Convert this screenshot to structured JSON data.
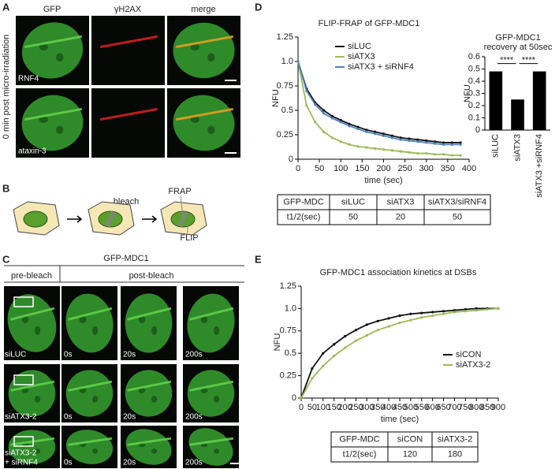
{
  "panel_labels": [
    "A",
    "B",
    "C",
    "D",
    "E"
  ],
  "panel_a": {
    "columns": [
      "GFP",
      "γH2AX",
      "merge"
    ],
    "side_label": "0 min post micro-irradiation",
    "rows": [
      "RNF4",
      "ataxin-3"
    ]
  },
  "panel_b": {
    "labels": [
      "bleach",
      "FRAP",
      "FLIP"
    ]
  },
  "panel_c": {
    "title": "GFP-MDC1",
    "groups": [
      "pre-bleach",
      "post-bleach"
    ],
    "rows": [
      [
        "siLUC"
      ],
      [
        "siATX3-2"
      ],
      [
        "siATX3-2",
        "+ siRNF4"
      ]
    ],
    "times": [
      "0s",
      "20s",
      "200s"
    ]
  },
  "chart_data": [
    {
      "type": "line",
      "title": "FLIP-FRAP of GFP-MDC1",
      "x_label": "time (sec)",
      "y_label": "NFU",
      "x": [
        0,
        20,
        40,
        60,
        80,
        100,
        120,
        140,
        160,
        180,
        200,
        220,
        240,
        260,
        280,
        300,
        320,
        340,
        360,
        380
      ],
      "series": [
        {
          "name": "siLUC",
          "color": "#111111",
          "values": [
            1.0,
            0.72,
            0.58,
            0.5,
            0.44,
            0.4,
            0.36,
            0.33,
            0.3,
            0.28,
            0.26,
            0.24,
            0.22,
            0.21,
            0.2,
            0.19,
            0.18,
            0.17,
            0.17,
            0.17
          ]
        },
        {
          "name": "siATX3",
          "color": "#9bbb59",
          "values": [
            1.0,
            0.55,
            0.38,
            0.28,
            0.22,
            0.18,
            0.15,
            0.13,
            0.12,
            0.11,
            0.1,
            0.09,
            0.08,
            0.07,
            0.06,
            0.06,
            0.05,
            0.05,
            0.04,
            0.04
          ]
        },
        {
          "name": "siATX3 + siRNF4",
          "color": "#4f81bd",
          "values": [
            1.0,
            0.7,
            0.56,
            0.47,
            0.42,
            0.38,
            0.34,
            0.31,
            0.28,
            0.26,
            0.24,
            0.22,
            0.2,
            0.19,
            0.18,
            0.17,
            0.16,
            0.15,
            0.15,
            0.15
          ]
        }
      ],
      "xlim": [
        0,
        400
      ],
      "xticks": [
        0,
        50,
        100,
        150,
        200,
        250,
        300,
        350,
        400
      ],
      "ylim": [
        0,
        1.25
      ],
      "yticks": [
        0,
        0.25,
        0.5,
        0.75,
        {
          "value": 1,
          "label": "1.0"
        },
        1.25
      ],
      "legend": "upper right"
    },
    {
      "type": "bar",
      "title": "GFP-MDC1",
      "subtitle": "recovery at 50sec",
      "y_label": "NFU",
      "categories": [
        "siLUC",
        "siATX3",
        "siATX3 +siRNF4"
      ],
      "values": [
        0.48,
        0.25,
        0.48
      ],
      "color": "#000000",
      "ylim": [
        0,
        0.6
      ],
      "yticks": [
        0,
        0.1,
        0.2,
        0.3,
        0.4,
        0.5,
        0.6
      ],
      "annotations": [
        "****",
        "****"
      ]
    },
    {
      "type": "line",
      "title": "GFP-MDC1 association kinetics at DSBs",
      "x_label": "time (sec)",
      "y_label": "NFU",
      "x": [
        0,
        50,
        100,
        150,
        200,
        250,
        300,
        350,
        400,
        450,
        500,
        550,
        600,
        650,
        700,
        750,
        800,
        850,
        900
      ],
      "series": [
        {
          "name": "siCON",
          "color": "#111111",
          "values": [
            0,
            0.33,
            0.5,
            0.6,
            0.69,
            0.76,
            0.82,
            0.86,
            0.89,
            0.92,
            0.94,
            0.95,
            0.96,
            0.97,
            0.98,
            0.99,
            1.0,
            1.0,
            1.0
          ]
        },
        {
          "name": "siATX3-2",
          "color": "#9bbb59",
          "values": [
            0,
            0.22,
            0.36,
            0.47,
            0.56,
            0.64,
            0.7,
            0.76,
            0.8,
            0.84,
            0.87,
            0.9,
            0.92,
            0.94,
            0.96,
            0.97,
            0.98,
            0.99,
            1.0
          ]
        }
      ],
      "xlim": [
        0,
        900
      ],
      "xticks": [
        0,
        50,
        100,
        150,
        200,
        250,
        300,
        350,
        400,
        450,
        500,
        550,
        600,
        650,
        700,
        750,
        800,
        850,
        900
      ],
      "ylim": [
        0,
        1.25
      ],
      "yticks": [
        0,
        0.25,
        0.5,
        0.75,
        {
          "value": 1,
          "label": "1.0"
        },
        1.25
      ],
      "legend": "lower right"
    }
  ],
  "tables": [
    {
      "header": [
        "GFP-MDC",
        "siLUC",
        "siATX3",
        "siATX3/siRNF4"
      ],
      "row": [
        "t1/2(sec)",
        "50",
        "20",
        "50"
      ]
    },
    {
      "header": [
        "GFP-MDC",
        "siCON",
        "siATX3-2"
      ],
      "row": [
        "t1/2(sec)",
        "120",
        "180"
      ]
    }
  ]
}
